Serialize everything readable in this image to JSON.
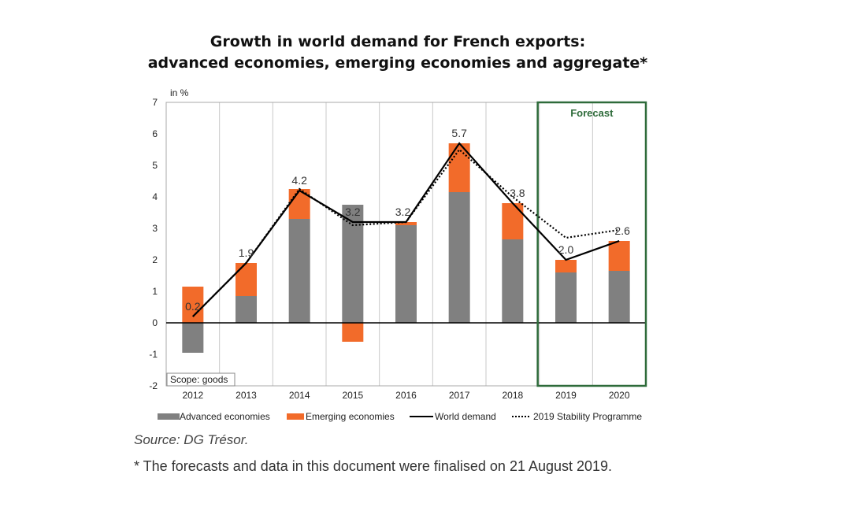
{
  "title_line1": "Growth in world demand for French exports:",
  "title_line2": "advanced economies, emerging economies and aggregate*",
  "source": "Source: DG Trésor.",
  "footnote": "* The forecasts and data in this document were finalised on 21 August 2019.",
  "colors": {
    "advanced": "#808080",
    "emerging": "#F26B2A",
    "world": "#000000",
    "stability": "#000000",
    "forecast": "#2E6B3A",
    "grid": "#c8c8c8"
  },
  "chart_data": {
    "type": "bar",
    "title": "Growth in world demand for French exports: advanced economies, emerging economies and aggregate*",
    "unit_label": "in %",
    "scope_label": "Scope: goods",
    "forecast_label": "Forecast",
    "forecast_categories": [
      "2019",
      "2020"
    ],
    "categories": [
      "2012",
      "2013",
      "2014",
      "2015",
      "2016",
      "2017",
      "2018",
      "2019",
      "2020"
    ],
    "ylim": [
      -2,
      7
    ],
    "yticks": [
      -2,
      -1,
      0,
      1,
      2,
      3,
      4,
      5,
      6,
      7
    ],
    "series": [
      {
        "name": "Advanced economies",
        "kind": "bar",
        "values": [
          -0.95,
          0.85,
          3.3,
          3.75,
          3.1,
          4.15,
          2.65,
          1.6,
          1.65
        ]
      },
      {
        "name": "Emerging economies",
        "kind": "bar",
        "values": [
          1.15,
          1.05,
          0.95,
          -0.6,
          0.1,
          1.55,
          1.15,
          0.4,
          0.95
        ]
      },
      {
        "name": "World demand",
        "kind": "line",
        "values": [
          0.2,
          1.9,
          4.2,
          3.2,
          3.2,
          5.7,
          3.8,
          2.0,
          2.6
        ]
      },
      {
        "name": "2019 Stability Programme",
        "kind": "dotted",
        "values": [
          0.2,
          1.9,
          4.25,
          3.1,
          3.2,
          5.5,
          4.0,
          2.7,
          2.95
        ]
      }
    ],
    "data_labels": [
      "0.2",
      "1.9",
      "4.2",
      "3.2",
      "3.2",
      "5.7",
      "3.8",
      "2.0",
      "2.6"
    ]
  }
}
